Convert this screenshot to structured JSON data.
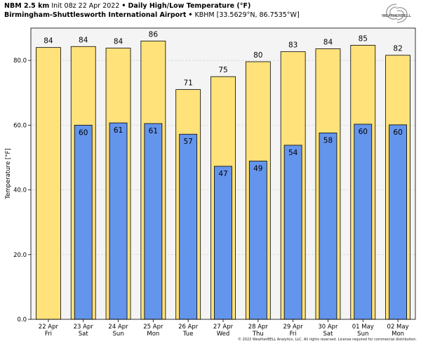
{
  "header": {
    "model": "NBM 2.5 km",
    "init": "Init 08z 22 Apr 2022",
    "product": "Daily High/Low Temperature (°F)",
    "location_name": "Birmingham-Shuttlesworth International Airport",
    "location_code": "KBHM [33.5629°N, 86.7535°W]",
    "bullet": "•"
  },
  "logo": {
    "text": "WEATHERBELL",
    "icon": "weatherbell-swirl-logo"
  },
  "footer": {
    "copyright": "© 2022 WeatherBELL Analytics, LLC. All rights reserved. License required for commercial distribution."
  },
  "colors": {
    "high": "#FFE27A",
    "low": "#6495ED",
    "plot_bg": "#F4F4F4",
    "grid": "#D0D0D0"
  },
  "chart_data": {
    "type": "bar",
    "title": "Daily High/Low Temperature (°F)",
    "ylabel": "Temperature [°F]",
    "ylim": [
      0,
      90
    ],
    "yticks": [
      "0.0",
      "20.0",
      "40.0",
      "60.0",
      "80.0"
    ],
    "ytick_values": [
      0,
      20,
      40,
      60,
      80
    ],
    "grid": true,
    "categories": [
      {
        "date": "22 Apr",
        "day": "Fri"
      },
      {
        "date": "23 Apr",
        "day": "Sat"
      },
      {
        "date": "24 Apr",
        "day": "Sun"
      },
      {
        "date": "25 Apr",
        "day": "Mon"
      },
      {
        "date": "26 Apr",
        "day": "Tue"
      },
      {
        "date": "27 Apr",
        "day": "Wed"
      },
      {
        "date": "28 Apr",
        "day": "Thu"
      },
      {
        "date": "29 Apr",
        "day": "Fri"
      },
      {
        "date": "30 Apr",
        "day": "Sat"
      },
      {
        "date": "01 May",
        "day": "Sun"
      },
      {
        "date": "02 May",
        "day": "Mon"
      }
    ],
    "series": [
      {
        "values": [
          84,
          84.3,
          83.8,
          86,
          71,
          75,
          79.6,
          82.7,
          83.6,
          84.7,
          81.6
        ],
        "labels": [
          "84",
          "84",
          "84",
          "86",
          "71",
          "75",
          "80",
          "83",
          "84",
          "85",
          "82"
        ]
      },
      {
        "values": [
          null,
          60,
          60.7,
          60.5,
          57.2,
          47.3,
          48.9,
          53.8,
          57.6,
          60.3,
          60.1
        ],
        "labels": [
          "",
          "60",
          "61",
          "61",
          "57",
          "47",
          "49",
          "54",
          "58",
          "60",
          "60"
        ]
      }
    ]
  }
}
